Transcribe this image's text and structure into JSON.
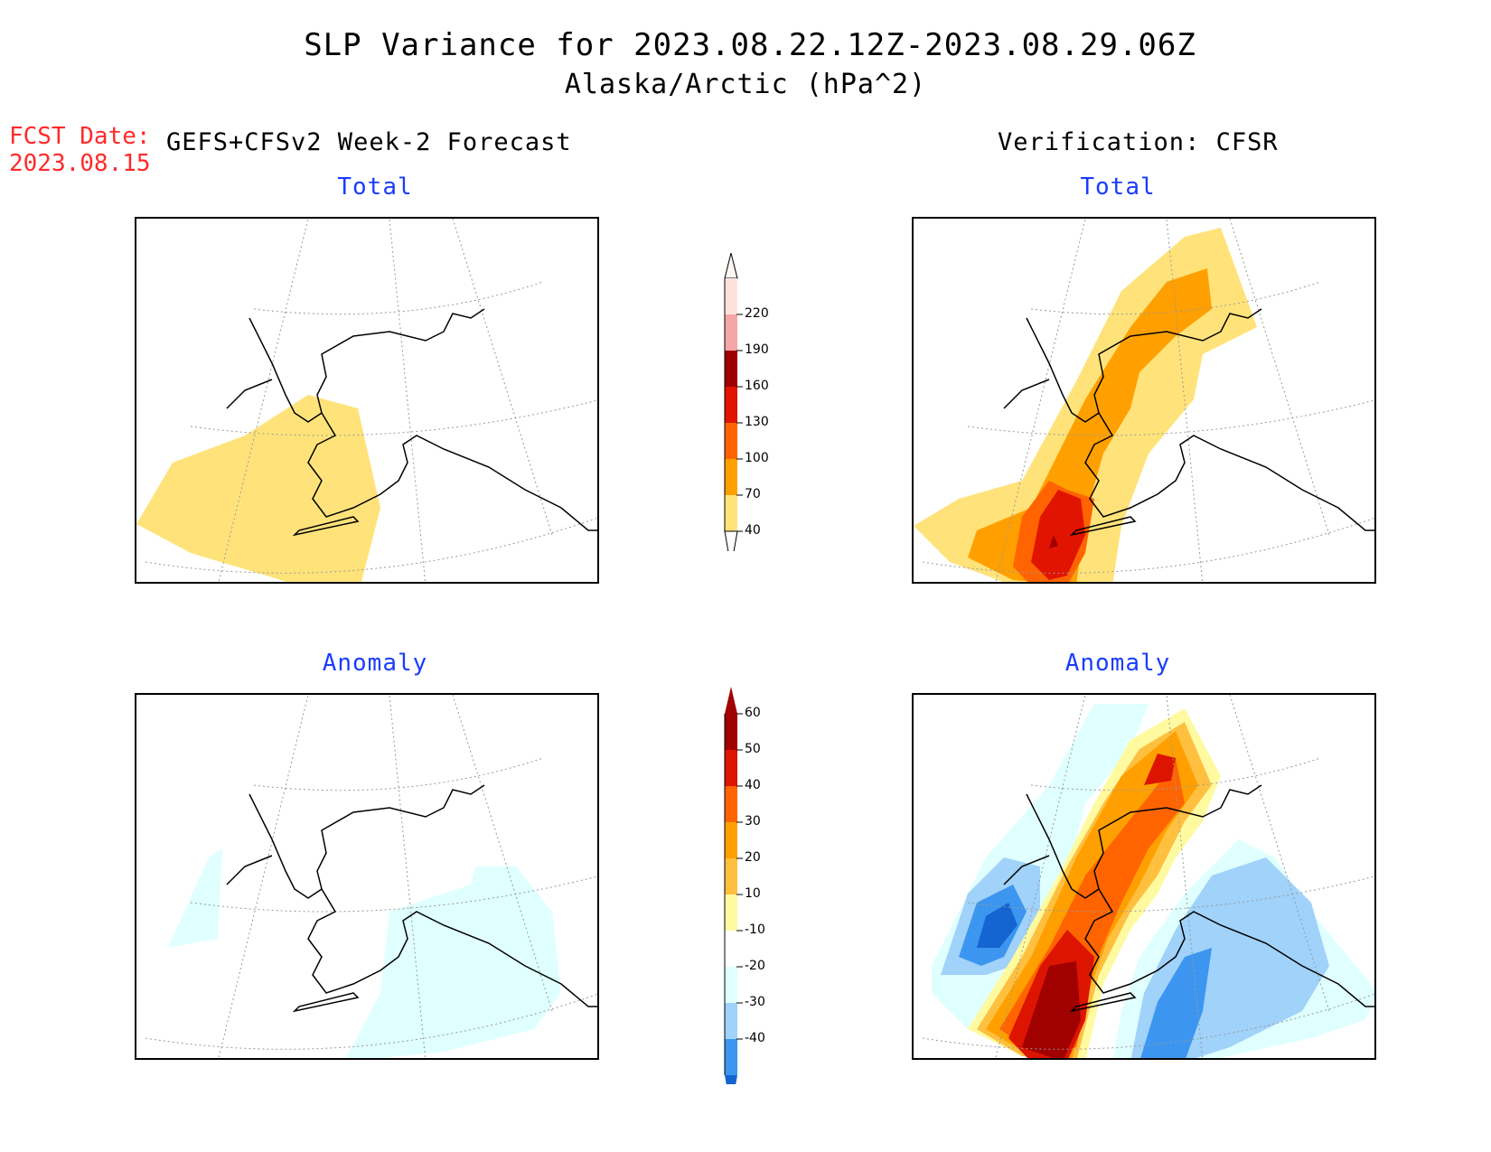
{
  "header": {
    "title_line1": "SLP Variance for 2023.08.22.12Z-2023.08.29.06Z",
    "title_line2": "Alaska/Arctic (hPa^2)",
    "fcst_label": "FCST Date:",
    "fcst_date": "2023.08.15",
    "left_heading": "GEFS+CFSv2 Week-2 Forecast",
    "right_heading": "Verification: CFSR"
  },
  "panels": {
    "forecast_total_title": "Total",
    "verification_total_title": "Total",
    "forecast_anomaly_title": "Anomaly",
    "verification_anomaly_title": "Anomaly"
  },
  "colorbars": {
    "total": {
      "labels": [
        "220",
        "190",
        "160",
        "130",
        "100",
        "70",
        "40"
      ],
      "colors": [
        "#ffe1dc",
        "#f4a6a6",
        "#9e0000",
        "#e01400",
        "#ff6400",
        "#ffa000",
        "#ffe37a"
      ]
    },
    "anomaly": {
      "labels": [
        "60",
        "50",
        "40",
        "30",
        "20",
        "10",
        "-10",
        "-20",
        "-30",
        "-40"
      ],
      "colors": [
        "#a00000",
        "#dc1400",
        "#ff6400",
        "#ffa000",
        "#ffc040",
        "#fffaa0",
        "#ffffff",
        "#e0ffff",
        "#a0d2fa",
        "#3c96f0",
        "#1464d2"
      ]
    }
  }
}
